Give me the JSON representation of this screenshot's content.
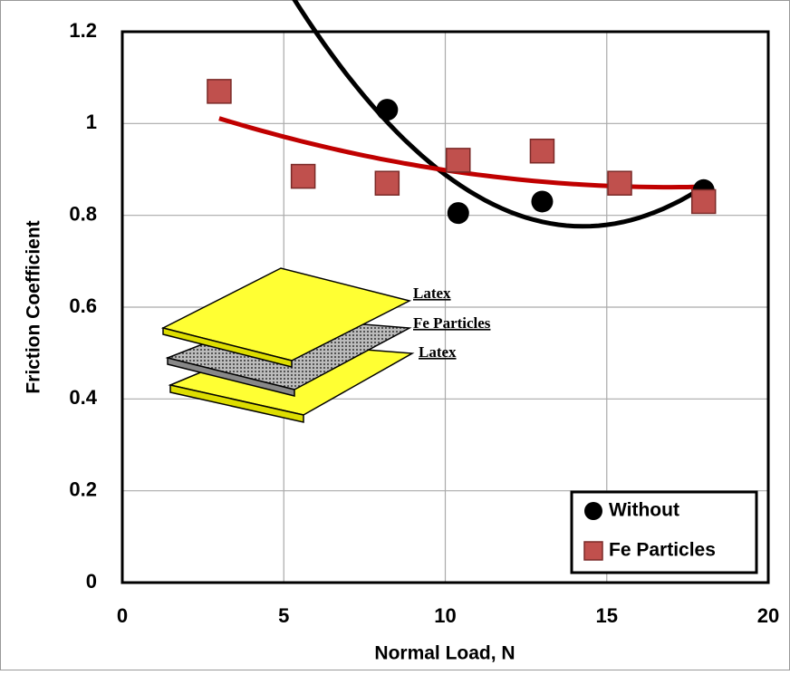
{
  "chart_data": {
    "type": "scatter",
    "x_label": "Normal Load, N",
    "y_label": "Friction Coefficient",
    "xlim": [
      0,
      20
    ],
    "xticks": [
      0,
      5,
      10,
      15,
      20
    ],
    "ylim": [
      0,
      1.2
    ],
    "yticks": [
      0,
      0.2,
      0.4,
      0.6,
      0.8,
      1,
      1.2
    ],
    "grid": true,
    "legend": "lower right",
    "trendline": "polynomial-2",
    "series": [
      {
        "name": "Without",
        "marker": "circle",
        "color": "#000000",
        "line_color": "#000000",
        "x": [
          8.2,
          10.4,
          13,
          18
        ],
        "values": [
          1.03,
          0.805,
          0.83,
          0.855
        ]
      },
      {
        "name": "Fe Particles",
        "marker": "square",
        "color": "#c0504d",
        "line_color": "#c00000",
        "x": [
          3,
          5.6,
          8.2,
          10.4,
          13,
          15.4,
          18
        ],
        "values": [
          1.07,
          0.885,
          0.87,
          0.92,
          0.94,
          0.87,
          0.83
        ]
      }
    ],
    "annotations": [
      "Latex",
      "Fe Particles",
      "Latex"
    ]
  }
}
